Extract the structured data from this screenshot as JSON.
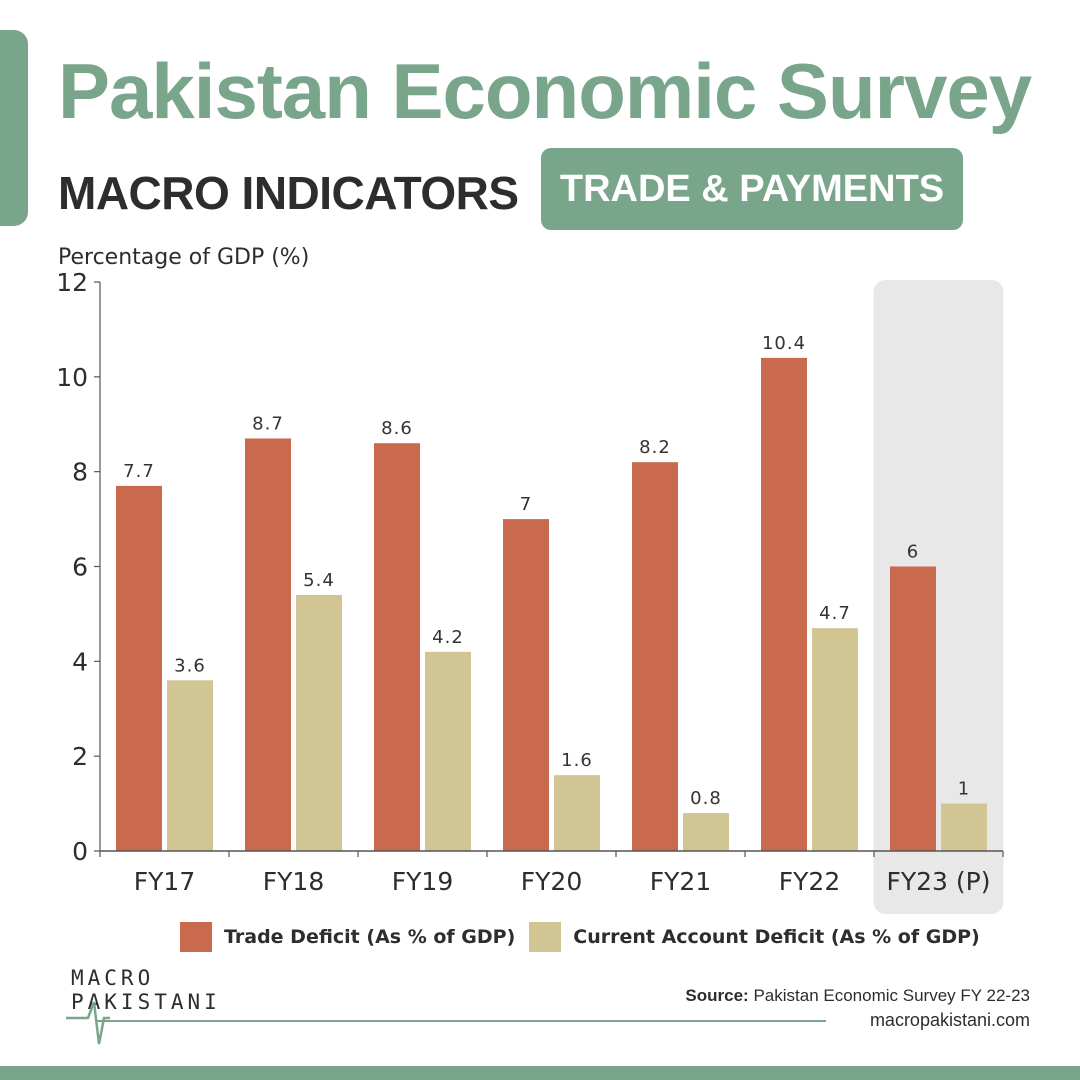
{
  "header": {
    "title": "Pakistan Economic Survey",
    "subtitle": "MACRO INDICATORS",
    "badge": "TRADE & PAYMENTS"
  },
  "colors": {
    "accent": "#79a58b",
    "trade_deficit": "#c96a4e",
    "current_account_deficit": "#d1c594",
    "highlight": "#e8e8e8",
    "text": "#2d2d2d"
  },
  "chart_data": {
    "type": "bar",
    "title": "",
    "xlabel": "",
    "ylabel": "Percentage of GDP (%)",
    "ylim": [
      0,
      12
    ],
    "yticks": [
      0,
      2,
      4,
      6,
      8,
      10,
      12
    ],
    "categories": [
      "FY17",
      "FY18",
      "FY19",
      "FY20",
      "FY21",
      "FY22",
      "FY23 (P)"
    ],
    "highlighted_category": "FY23 (P)",
    "grid": false,
    "legend_position": "bottom",
    "series": [
      {
        "name": "Trade Deficit (As % of GDP)",
        "values": [
          7.7,
          8.7,
          8.6,
          7,
          8.2,
          10.4,
          6
        ],
        "labels": [
          "7.7",
          "8.7",
          "8.6",
          "7",
          "8.2",
          "10.4",
          "6"
        ]
      },
      {
        "name": "Current Account Deficit (As % of GDP)",
        "values": [
          3.6,
          5.4,
          4.2,
          1.6,
          0.8,
          4.7,
          1
        ],
        "labels": [
          "3.6",
          "5.4",
          "4.2",
          "1.6",
          "0.8",
          "4.7",
          "1"
        ]
      }
    ]
  },
  "footer": {
    "logo_line1": "MACRO",
    "logo_line2": "PAKISTANI",
    "source_label": "Source:",
    "source_text": "Pakistan Economic Survey FY 22-23",
    "website": "macropakistani.com"
  }
}
